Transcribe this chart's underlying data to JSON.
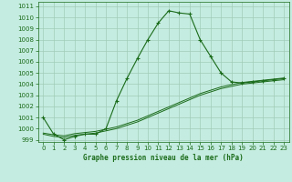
{
  "title": "Graphe pression niveau de la mer (hPa)",
  "bg_color": "#c5ece0",
  "grid_color": "#a0ccb8",
  "line_color": "#1a6b1a",
  "xlim": [
    -0.5,
    23.5
  ],
  "ylim": [
    998.8,
    1011.4
  ],
  "xtick_vals": [
    0,
    1,
    2,
    3,
    4,
    5,
    6,
    7,
    8,
    9,
    10,
    11,
    12,
    13,
    14,
    15,
    16,
    17,
    18,
    19,
    20,
    21,
    22,
    23
  ],
  "ytick_vals": [
    999,
    1000,
    1001,
    1002,
    1003,
    1004,
    1005,
    1006,
    1007,
    1008,
    1009,
    1010,
    1011
  ],
  "series1_y": [
    1001.0,
    999.5,
    999.0,
    999.3,
    999.5,
    999.5,
    1000.0,
    1002.5,
    1004.5,
    1006.3,
    1008.0,
    1009.5,
    1010.6,
    1010.4,
    1010.3,
    1008.0,
    1006.5,
    1005.0,
    1004.2,
    1004.1,
    1004.2,
    1004.3,
    1004.4,
    1004.5
  ],
  "series2_y": [
    999.5,
    999.3,
    999.2,
    999.4,
    999.5,
    999.6,
    999.8,
    1000.0,
    1000.3,
    1000.6,
    1001.0,
    1001.4,
    1001.8,
    1002.2,
    1002.6,
    1003.0,
    1003.3,
    1003.6,
    1003.8,
    1004.0,
    1004.1,
    1004.2,
    1004.3,
    1004.4
  ],
  "series3_y": [
    999.6,
    999.45,
    999.35,
    999.55,
    999.65,
    999.75,
    999.95,
    1000.15,
    1000.45,
    1000.75,
    1001.15,
    1001.55,
    1001.95,
    1002.35,
    1002.75,
    1003.15,
    1003.45,
    1003.75,
    1003.95,
    1004.15,
    1004.25,
    1004.35,
    1004.45,
    1004.55
  ],
  "title_fontsize": 5.5,
  "tick_fontsize": 5.0
}
